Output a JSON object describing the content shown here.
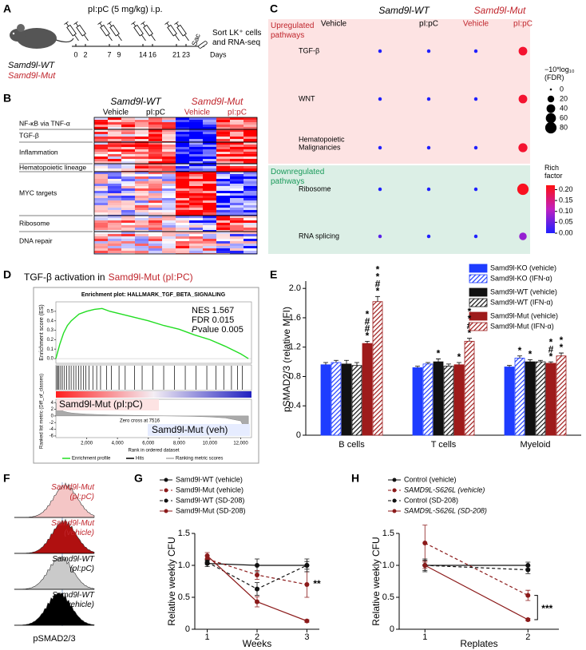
{
  "panel_labels": [
    "A",
    "B",
    "C",
    "D",
    "E",
    "F",
    "G",
    "H"
  ],
  "schema": {
    "treatment": "pI:pC (5 mg/kg) i.p.",
    "days": [
      0,
      2,
      7,
      9,
      14,
      16,
      21,
      23
    ],
    "days_label": "Days",
    "sac": "Sac",
    "readout": "Sort LK⁺ cells and RNA-seq",
    "mice": [
      "Samd9l-WT",
      "Samd9l-Mut"
    ]
  },
  "heatmap": {
    "groups": [
      "Samd9l-WT",
      "Samd9l-Mut"
    ],
    "conditions": [
      "Vehicle",
      "pI:pC",
      "Vehicle",
      "pI:pC"
    ],
    "pathways": [
      "NF-κB via TNF-α",
      "TGF-β",
      "Inflammation",
      "Hematopoietic lineage",
      "MYC targets",
      "Ribosome",
      "DNA repair"
    ]
  },
  "histograms": {
    "samples": [
      "Samd9l-Mut (pI:pC)",
      "Samd9l-Mut (vehicle)",
      "Samd9l-WT (pI:pC)",
      "Samd9l-WT (vehicle)"
    ],
    "colors": [
      "#f4c6c6",
      "#b01010",
      "#cacaca",
      "#000000"
    ],
    "x_label": "pSMAD2/3"
  },
  "chart_data": [
    {
      "type": "dot",
      "title_groups": [
        "Samd9l-WT",
        "Samd9l-Mut"
      ],
      "columns": [
        "Vehicle",
        "pI:pC",
        "Vehicle",
        "pI:pC"
      ],
      "row_groups": [
        "Upregulated pathways",
        "Downregulated pathways"
      ],
      "rows": [
        "TGF-β",
        "WNT",
        "Hematopoietic Malignancies",
        "Ribosome",
        "RNA splicing"
      ],
      "size": [
        [
          2,
          2,
          2,
          40
        ],
        [
          2,
          2,
          2,
          40
        ],
        [
          2,
          2,
          2,
          45
        ],
        [
          2,
          2,
          2,
          80
        ],
        [
          2,
          2,
          2,
          28
        ]
      ],
      "color_values": [
        [
          0,
          0,
          0,
          0.2
        ],
        [
          0,
          0,
          0,
          0.2
        ],
        [
          0,
          0,
          0,
          0.2
        ],
        [
          0,
          0,
          0,
          0.21
        ],
        [
          0.04,
          0,
          0,
          0.08
        ]
      ],
      "size_title": "−10*log₁₀ (FDR)",
      "size_ticks": [
        0,
        20,
        40,
        60,
        80
      ],
      "color_title": "Rich factor",
      "clim": [
        0,
        0.22
      ],
      "color_ticks": [
        {
          "value": 0.2,
          "label": "0.20"
        },
        {
          "value": 0.15,
          "label": "0.15"
        },
        {
          "value": 0.1,
          "label": "0.10"
        },
        {
          "value": 0.05,
          "label": "0.05"
        },
        {
          "value": 0,
          "label": "0.00"
        }
      ],
      "colormap": [
        "#2020ff",
        "#c020c0",
        "#ff1010"
      ]
    },
    {
      "type": "gsea",
      "title": "TGF-β activation in",
      "title_group": "Samd9l-Mut (pI:PC)",
      "plot_title": "Enrichment plot: HALLMARK_TGF_BETA_SIGNALING",
      "stats": [
        "NES 1.567",
        "FDR 0.015"
      ],
      "p_stat": [
        "P",
        " value 0.005"
      ],
      "x": [
        0,
        250,
        500,
        750,
        1000,
        1500,
        2000,
        2500,
        3000,
        3500,
        4000,
        5000,
        6000,
        7000,
        8000,
        9000,
        10000,
        11000,
        12000,
        12500
      ],
      "es": [
        0,
        0.15,
        0.27,
        0.35,
        0.4,
        0.47,
        0.5,
        0.52,
        0.53,
        0.5,
        0.48,
        0.44,
        0.4,
        0.35,
        0.31,
        0.25,
        0.2,
        0.13,
        0.05,
        0
      ],
      "metric": [
        4,
        2,
        1.4,
        1.1,
        0.9,
        0.7,
        0.55,
        0.45,
        0.38,
        0.3,
        0.25,
        0.17,
        0.1,
        0.03,
        -0.05,
        -0.15,
        -0.3,
        -0.6,
        -1.5,
        -6
      ],
      "hits": [
        50,
        120,
        200,
        310,
        420,
        560,
        700,
        850,
        990,
        1150,
        1300,
        1480,
        1620,
        1800,
        1950,
        2150,
        2400,
        2650,
        2900,
        3300,
        3600,
        4100,
        4500,
        5100,
        5600,
        6300,
        7000,
        7700,
        8400,
        9100,
        9800,
        10400,
        10900,
        11400,
        11800,
        12100
      ],
      "xlim": [
        0,
        12700
      ],
      "xticks": [
        {
          "value": 2000,
          "label": "2,000"
        },
        {
          "value": 4000,
          "label": "4,000"
        },
        {
          "value": 6000,
          "label": "6,000"
        },
        {
          "value": 8000,
          "label": "8,000"
        },
        {
          "value": 10000,
          "label": "10,000"
        },
        {
          "value": 12000,
          "label": "12,000"
        }
      ],
      "ylim": [
        -0.05,
        0.6
      ],
      "yticks": [
        {
          "value": 0,
          "label": "0.0"
        },
        0.1,
        0.2,
        0.3,
        0.4,
        0.5
      ],
      "metric_ylim": [
        -6.5,
        5
      ],
      "metric_yticks": [
        4,
        2,
        0,
        -2,
        -4,
        -6
      ],
      "y_label": "Enrichment score (ES)",
      "metric_label": "Ranked list metric (Diff_of_classes)",
      "x_label": "Rank in ordered dataset",
      "zero_cross": "Zero cross at 7516",
      "pos_label": "Samd9l-Mut (pI:pC)",
      "neg_label": "Samd9l-Mut (veh)",
      "legend": [
        "Enrichment profile",
        "Hits",
        "Ranking metric scores"
      ],
      "profile_color": "#22dd22"
    },
    {
      "type": "bar",
      "categories": [
        "B cells",
        "T cells",
        "Myeloid"
      ],
      "y_label": "pSMAD2/3 (relative MFI)",
      "ylim": [
        0,
        2.1
      ],
      "yticks": [
        0,
        0.4,
        0.8,
        1.2,
        1.6,
        {
          "value": 2,
          "label": "2.0"
        }
      ],
      "series": [
        {
          "name": "Samd9l-KO (vehicle)",
          "color": "#1e3cff",
          "hatched": false,
          "values": [
            0.96,
            0.92,
            0.93
          ],
          "errors": [
            0.03,
            0.02,
            0.02
          ],
          "annotations": [
            [],
            [],
            []
          ]
        },
        {
          "name": "Samd9l-KO (IFN-α)",
          "color": "#1e3cff",
          "hatched": true,
          "values": [
            0.99,
            0.97,
            1.05
          ],
          "errors": [
            0.03,
            0.02,
            0.03
          ],
          "annotations": [
            [],
            [],
            [
              {
                "text": "*",
                "color": "#1e3cff"
              }
            ]
          ]
        },
        {
          "name": "Samd9l-WT (vehicle)",
          "color": "#111111",
          "hatched": false,
          "values": [
            0.97,
            1.0,
            1.0
          ],
          "errors": [
            0.05,
            0.04,
            0.03
          ],
          "annotations": [
            [],
            [
              {
                "text": "*",
                "color": "#1e3cff"
              }
            ],
            [
              {
                "text": "*",
                "color": "#1e3cff"
              }
            ]
          ]
        },
        {
          "name": "Samd9l-WT (IFN-α)",
          "color": "#111111",
          "hatched": true,
          "values": [
            0.95,
            0.94,
            1.0
          ],
          "errors": [
            0.04,
            0.03,
            0.02
          ],
          "annotations": [
            [],
            [],
            []
          ]
        },
        {
          "name": "Samd9l-Mut (vehicle)",
          "color": "#9e1b1b",
          "hatched": false,
          "values": [
            1.25,
            0.96,
            0.98
          ],
          "errors": [
            0.03,
            0.03,
            0.02
          ],
          "annotations": [
            [
              {
                "text": "*",
                "color": "#000000"
              },
              {
                "text": "#",
                "color": "#000000"
              },
              {
                "text": "#",
                "color": "#1e3cff"
              },
              {
                "text": "*",
                "color": "#000000"
              }
            ],
            [
              {
                "text": "*",
                "color": "#000000"
              }
            ],
            [
              {
                "text": "*",
                "color": "#1e3cff"
              },
              {
                "text": "#",
                "color": "#1e3cff"
              },
              {
                "text": "*",
                "color": "#000000"
              }
            ]
          ]
        },
        {
          "name": "Samd9l-Mut (IFN-α)",
          "color": "#9e1b1b",
          "hatched": true,
          "values": [
            1.82,
            1.28,
            1.08
          ],
          "errors": [
            0.07,
            0.04,
            0.04
          ],
          "annotations": [
            [
              {
                "text": "*",
                "color": "#1e3cff"
              },
              {
                "text": "#",
                "color": "#1e3cff"
              },
              {
                "text": "*",
                "color": "#c00000"
              },
              {
                "text": "*",
                "color": "#1e3cff"
              }
            ],
            [
              {
                "text": "*",
                "color": "#1e3cff"
              },
              {
                "text": "#",
                "color": "#1e3cff"
              },
              {
                "text": "*",
                "color": "#c00000"
              },
              {
                "text": "*",
                "color": "#1e3cff"
              }
            ],
            [
              {
                "text": "*",
                "color": "#1e3cff"
              },
              {
                "text": "*",
                "color": "#c00000"
              }
            ]
          ]
        }
      ]
    },
    {
      "type": "line",
      "x": [
        1,
        2,
        3
      ],
      "xlim": [
        0.75,
        3.25
      ],
      "xticks": [
        1,
        2,
        3
      ],
      "ylim": [
        0,
        1.5
      ],
      "yticks": [
        0,
        0.5,
        {
          "value": 1,
          "label": "1.0"
        },
        1.5
      ],
      "x_label": "Weeks",
      "y_label": "Relative weekly CFU",
      "series": [
        {
          "name": "Samd9l-WT (vehicle)",
          "color": "#111111",
          "dashed": false,
          "values": [
            1.03,
            1.0,
            1.0
          ],
          "errors": [
            0.05,
            0.1,
            0.06
          ]
        },
        {
          "name": "Samd9l-Mut (vehicle)",
          "color": "#8b1a1a",
          "dashed": true,
          "values": [
            1.1,
            0.85,
            0.7
          ],
          "errors": [
            0.05,
            0.07,
            0.2
          ],
          "annotation": "**"
        },
        {
          "name": "Samd9l-WT (SD-208)",
          "color": "#111111",
          "dashed": true,
          "values": [
            1.05,
            0.63,
            1.0
          ],
          "errors": [
            0.03,
            0.1,
            0.1
          ]
        },
        {
          "name": "Samd9l-Mut (SD-208)",
          "color": "#8b1a1a",
          "dashed": false,
          "values": [
            1.15,
            0.43,
            0.13
          ],
          "errors": [
            0.05,
            0.08,
            0.02
          ]
        }
      ]
    },
    {
      "type": "line",
      "x": [
        1,
        2
      ],
      "xlim": [
        0.75,
        2.3
      ],
      "xticks": [
        1,
        2
      ],
      "ylim": [
        0,
        1.5
      ],
      "yticks": [
        0,
        0.5,
        {
          "value": 1,
          "label": "1.0"
        },
        1.5
      ],
      "x_label": "Replates",
      "y_label": "Relative weekly CFU",
      "annotation": "***",
      "series": [
        {
          "name": "Control (vehicle)",
          "color": "#111111",
          "dashed": false,
          "values": [
            1.0,
            1.0
          ],
          "errors": [
            0.08,
            0.05
          ]
        },
        {
          "name": "SAMD9L-S626L (vehicle)",
          "color": "#8b1a1a",
          "dashed": true,
          "values": [
            1.35,
            0.53
          ],
          "errors": [
            0.28,
            0.08
          ]
        },
        {
          "name": "Control (SD-208)",
          "color": "#111111",
          "dashed": true,
          "values": [
            1.0,
            0.93
          ],
          "errors": [
            0.1,
            0.06
          ]
        },
        {
          "name": "SAMD9L-S626L (SD-208)",
          "color": "#8b1a1a",
          "dashed": false,
          "values": [
            1.0,
            0.15
          ],
          "errors": [
            0.05,
            0.02
          ]
        }
      ]
    }
  ]
}
